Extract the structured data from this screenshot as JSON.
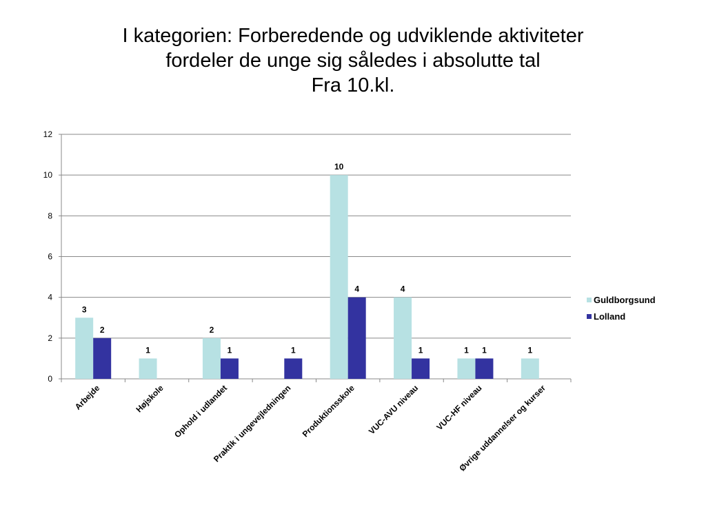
{
  "title_lines": [
    "I kategorien: Forberedende og udviklende aktiviteter",
    "fordeler de unge sig således i absolutte tal",
    "Fra 10.kl."
  ],
  "chart_data": {
    "type": "bar",
    "title": "I kategorien: Forberedende og udviklende aktiviteter fordeler de unge sig således i absolutte tal Fra 10.kl.",
    "categories": [
      "Arbejde",
      "Højskole",
      "Ophold i udlandet",
      "Praktik i ungevejledningen",
      "Produktionsskole",
      "VUC-AVU niveau",
      "VUC-HF niveau",
      "Øvrige uddannelser og kurser"
    ],
    "series": [
      {
        "name": "Guldborgsund",
        "color": "#b7e1e3",
        "values": [
          3,
          1,
          2,
          null,
          10,
          4,
          1,
          1
        ]
      },
      {
        "name": "Lolland",
        "color": "#3333a0",
        "values": [
          2,
          null,
          1,
          1,
          4,
          1,
          1,
          null
        ]
      }
    ],
    "ylim": [
      0,
      12
    ],
    "yticks": [
      0,
      2,
      4,
      6,
      8,
      10,
      12
    ],
    "grid": true,
    "legend": "right",
    "xlabel": "",
    "ylabel": ""
  }
}
